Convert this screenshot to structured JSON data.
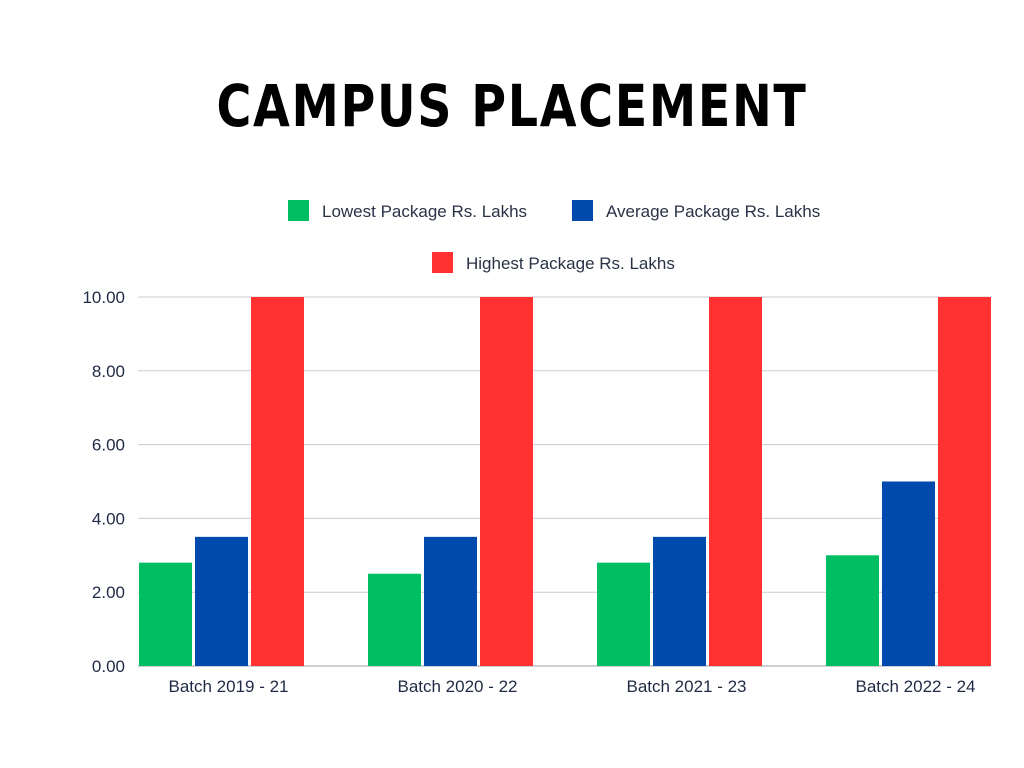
{
  "chart_data": {
    "type": "bar",
    "title": "CAMPUS PLACEMENT",
    "xlabel": "",
    "ylabel": "",
    "categories": [
      "Batch 2019 - 21",
      "Batch 2020 - 22",
      "Batch 2021 - 23",
      "Batch 2022 - 24"
    ],
    "series": [
      {
        "name": "Lowest Package Rs. Lakhs",
        "color": "#00bf63",
        "values": [
          2.8,
          2.5,
          2.8,
          3.0
        ]
      },
      {
        "name": "Average Package Rs. Lakhs",
        "color": "#004aad",
        "values": [
          3.5,
          3.5,
          3.5,
          5.0
        ]
      },
      {
        "name": "Highest Package Rs. Lakhs",
        "color": "#ff3131",
        "values": [
          10.0,
          10.0,
          10.0,
          10.0
        ]
      }
    ],
    "ylim": [
      0,
      10
    ],
    "yticks": [
      "0.00",
      "2.00",
      "4.00",
      "6.00",
      "8.00",
      "10.00"
    ],
    "grid": true,
    "legend_position": "top"
  }
}
